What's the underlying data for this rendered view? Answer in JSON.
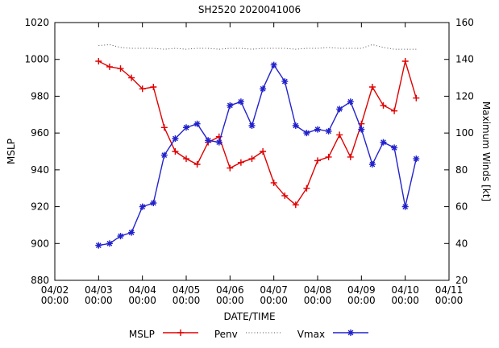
{
  "title": "SH2520 2020041006",
  "axes": {
    "xlabel": "DATE/TIME",
    "ylabel_left": "MSLP",
    "ylabel_right": "Maximum Winds [kt]"
  },
  "legend": {
    "mslp": "MSLP",
    "penv": "Penv",
    "vmax": "Vmax"
  },
  "colors": {
    "mslp": "#e00000",
    "penv": "#555555",
    "vmax": "#2222cc",
    "frame": "#000000",
    "background": "#ffffff"
  },
  "chart_data": {
    "type": "line",
    "title": "SH2520 2020041006",
    "xlabel": "DATE/TIME",
    "ylabel_left": "MSLP",
    "ylabel_right": "Maximum Winds [kt]",
    "grid": false,
    "legend_position": "bottom-center",
    "x_tick_dates": [
      "04/02",
      "04/03",
      "04/04",
      "04/05",
      "04/06",
      "04/07",
      "04/08",
      "04/09",
      "04/10",
      "04/11"
    ],
    "x_tick_sub": "00:00",
    "x_range_days": [
      0,
      9
    ],
    "ylim_left": [
      880,
      1020
    ],
    "y_ticks_left": [
      880,
      900,
      920,
      940,
      960,
      980,
      1000,
      1020
    ],
    "ylim_right": [
      20,
      160
    ],
    "y_ticks_right": [
      20,
      40,
      60,
      80,
      100,
      120,
      140,
      160
    ],
    "x_times": [
      "04/03 00:00",
      "04/03 06:00",
      "04/03 12:00",
      "04/03 18:00",
      "04/04 00:00",
      "04/04 06:00",
      "04/04 12:00",
      "04/04 18:00",
      "04/05 00:00",
      "04/05 06:00",
      "04/05 12:00",
      "04/05 18:00",
      "04/06 00:00",
      "04/06 06:00",
      "04/06 12:00",
      "04/06 18:00",
      "04/07 00:00",
      "04/07 06:00",
      "04/07 12:00",
      "04/07 18:00",
      "04/08 00:00",
      "04/08 06:00",
      "04/08 12:00",
      "04/08 18:00",
      "04/09 00:00",
      "04/09 06:00",
      "04/09 12:00",
      "04/09 18:00",
      "04/10 00:00",
      "04/10 06:00"
    ],
    "x_days": [
      1.0,
      1.25,
      1.5,
      1.75,
      2.0,
      2.25,
      2.5,
      2.75,
      3.0,
      3.25,
      3.5,
      3.75,
      4.0,
      4.25,
      4.5,
      4.75,
      5.0,
      5.25,
      5.5,
      5.75,
      6.0,
      6.25,
      6.5,
      6.75,
      7.0,
      7.25,
      7.5,
      7.75,
      8.0,
      8.25
    ],
    "series": [
      {
        "name": "MSLP",
        "axis": "left",
        "color": "#e00000",
        "marker": "plus",
        "style": "solid",
        "values": [
          999,
          996,
          995,
          990,
          984,
          985,
          963,
          950,
          946,
          943,
          955,
          958,
          941,
          944,
          946,
          950,
          933,
          926,
          921,
          930,
          945,
          947,
          959,
          947,
          965,
          985,
          975,
          972,
          999,
          979
        ]
      },
      {
        "name": "Penv",
        "axis": "left",
        "color": "#555555",
        "marker": "none",
        "style": "dotted",
        "values": [
          1007.5,
          1008,
          1006.5,
          1006,
          1006,
          1006,
          1005.5,
          1006,
          1005.5,
          1006,
          1006,
          1005.5,
          1006,
          1006,
          1005.5,
          1006,
          1006,
          1006,
          1005.5,
          1006,
          1006,
          1006.5,
          1006,
          1006,
          1006,
          1008,
          1006.5,
          1005.5,
          1005.5,
          1005.5
        ]
      },
      {
        "name": "Vmax",
        "axis": "right",
        "color": "#2222cc",
        "marker": "asterisk",
        "style": "solid",
        "values": [
          39,
          40,
          44,
          46,
          60,
          62,
          88,
          97,
          103,
          105,
          96,
          95,
          115,
          117,
          104,
          124,
          137,
          128,
          104,
          100,
          102,
          101,
          113,
          117,
          102,
          83,
          95,
          92,
          60,
          86
        ]
      }
    ]
  }
}
